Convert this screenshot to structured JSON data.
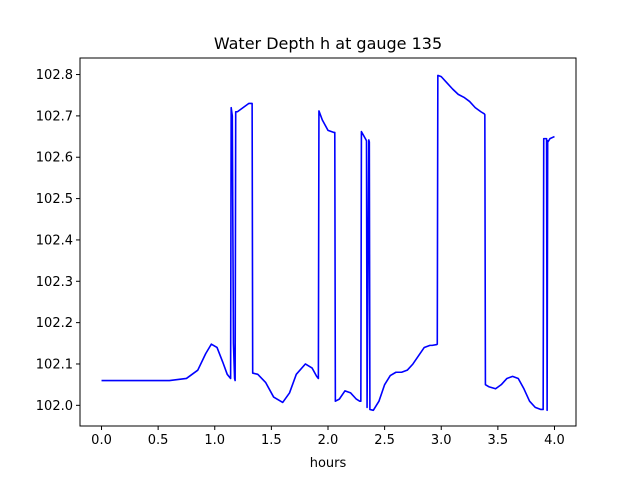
{
  "chart_data": {
    "type": "line",
    "title": "Water Depth h at gauge 135",
    "xlabel": "hours",
    "ylabel": "",
    "xlim": [
      -0.19,
      4.19
    ],
    "ylim": [
      101.95,
      102.84
    ],
    "xticks": [
      0.0,
      0.5,
      1.0,
      1.5,
      2.0,
      2.5,
      3.0,
      3.5,
      4.0
    ],
    "xtick_labels": [
      "0.0",
      "0.5",
      "1.0",
      "1.5",
      "2.0",
      "2.5",
      "3.0",
      "3.5",
      "4.0"
    ],
    "yticks": [
      102.0,
      102.1,
      102.2,
      102.3,
      102.4,
      102.5,
      102.6,
      102.7,
      102.8
    ],
    "ytick_labels": [
      "102.0",
      "102.1",
      "102.2",
      "102.3",
      "102.4",
      "102.5",
      "102.6",
      "102.7",
      "102.8"
    ],
    "grid": false,
    "legend": "none",
    "series": [
      {
        "color": "#0000ff",
        "x": [
          0.0,
          0.3,
          0.6,
          0.75,
          0.85,
          0.92,
          0.97,
          1.02,
          1.07,
          1.11,
          1.14,
          1.145,
          1.155,
          1.165,
          1.175,
          1.18,
          1.185,
          1.2,
          1.25,
          1.3,
          1.33,
          1.335,
          1.38,
          1.45,
          1.52,
          1.6,
          1.66,
          1.72,
          1.8,
          1.86,
          1.9,
          1.915,
          1.92,
          1.95,
          2.0,
          2.05,
          2.06,
          2.065,
          2.1,
          2.15,
          2.2,
          2.25,
          2.28,
          2.29,
          2.295,
          2.33,
          2.34,
          2.345,
          2.36,
          2.365,
          2.37,
          2.4,
          2.45,
          2.5,
          2.55,
          2.6,
          2.65,
          2.7,
          2.75,
          2.8,
          2.85,
          2.9,
          2.92,
          2.96,
          2.965,
          2.97,
          3.0,
          3.05,
          3.1,
          3.15,
          3.2,
          3.25,
          3.3,
          3.35,
          3.38,
          3.385,
          3.39,
          3.42,
          3.48,
          3.53,
          3.58,
          3.63,
          3.68,
          3.73,
          3.78,
          3.83,
          3.88,
          3.9,
          3.905,
          3.93,
          3.935,
          3.94,
          3.945,
          3.96,
          4.0
        ],
        "y": [
          102.06,
          102.06,
          102.06,
          102.065,
          102.085,
          102.125,
          102.148,
          102.14,
          102.105,
          102.075,
          102.065,
          102.72,
          102.7,
          102.15,
          102.065,
          102.06,
          102.71,
          102.71,
          102.72,
          102.73,
          102.73,
          102.078,
          102.075,
          102.055,
          102.02,
          102.007,
          102.03,
          102.075,
          102.1,
          102.09,
          102.07,
          102.065,
          102.712,
          102.69,
          102.665,
          102.66,
          102.66,
          102.01,
          102.015,
          102.035,
          102.03,
          102.015,
          102.01,
          102.01,
          102.662,
          102.645,
          102.64,
          101.995,
          102.642,
          102.637,
          101.99,
          101.988,
          102.01,
          102.05,
          102.072,
          102.08,
          102.08,
          102.085,
          102.1,
          102.12,
          102.14,
          102.145,
          102.145,
          102.147,
          102.148,
          102.798,
          102.795,
          102.78,
          102.765,
          102.752,
          102.745,
          102.735,
          102.72,
          102.71,
          102.705,
          102.703,
          102.05,
          102.045,
          102.04,
          102.05,
          102.065,
          102.07,
          102.065,
          102.04,
          102.01,
          101.995,
          101.99,
          101.99,
          102.645,
          102.645,
          101.988,
          102.64,
          102.638,
          102.645,
          102.65
        ]
      }
    ]
  }
}
